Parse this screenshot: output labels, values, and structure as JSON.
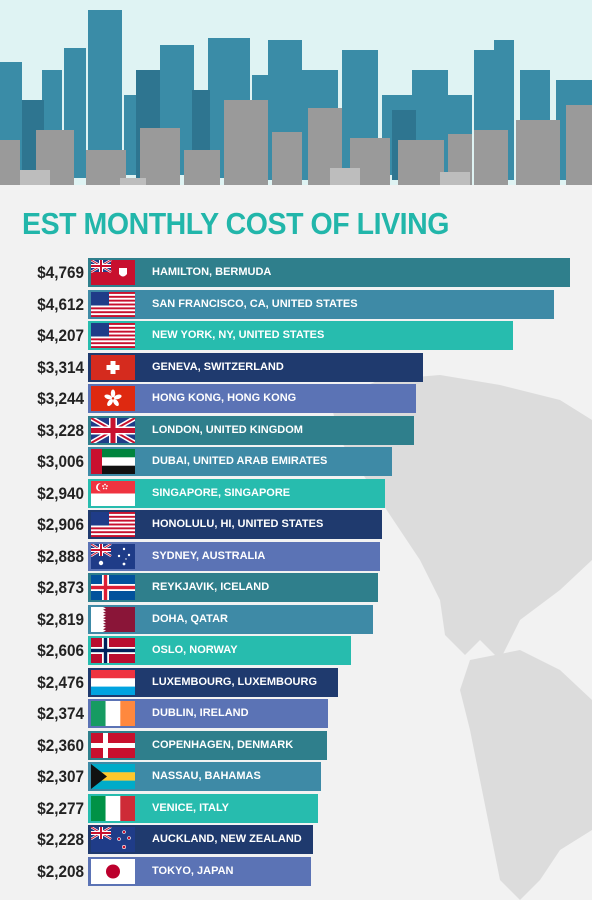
{
  "colors": {
    "teal_dark": "#2f7f8c",
    "steel": "#3e8aa6",
    "aqua": "#27bcae",
    "navy": "#1f3a6e",
    "periwinkle": "#5b73b5",
    "title": "#22b6aa",
    "skyline_blue": "#3a8ca7",
    "skyline_grey": "#9a9a9a"
  },
  "chart_data": {
    "type": "bar",
    "orientation": "horizontal",
    "title": "EST MONTHLY COST OF LIVING",
    "xlabel": "",
    "ylabel": "",
    "xlim": [
      0,
      4900
    ],
    "grid": false,
    "legend": "none",
    "categories": [
      "HAMILTON, BERMUDA",
      "SAN FRANCISCO, CA, UNITED STATES",
      "NEW YORK, NY, UNITED STATES",
      "GENEVA, SWITZERLAND",
      "HONG KONG, HONG KONG",
      "LONDON, UNITED KINGDOM",
      "DUBAI, UNITED ARAB EMIRATES",
      "SINGAPORE, SINGAPORE",
      "HONOLULU, HI, UNITED STATES",
      "SYDNEY, AUSTRALIA",
      "REYKJAVIK, ICELAND",
      "DOHA, QATAR",
      "OSLO, NORWAY",
      "LUXEMBOURG, LUXEMBOURG",
      "DUBLIN, IRELAND",
      "COPENHAGEN, DENMARK",
      "NASSAU, BAHAMAS",
      "VENICE, ITALY",
      "AUCKLAND, NEW ZEALAND",
      "TOKYO, JAPAN"
    ],
    "values": [
      4769,
      4612,
      4207,
      3314,
      3244,
      3228,
      3006,
      2940,
      2906,
      2888,
      2873,
      2819,
      2606,
      2476,
      2374,
      2360,
      2307,
      2277,
      2228,
      2208
    ],
    "value_labels": [
      "$4,769",
      "$4,612",
      "$4,207",
      "$3,314",
      "$3,244",
      "$3,228",
      "$3,006",
      "$2,940",
      "$2,906",
      "$2,888",
      "$2,873",
      "$2,819",
      "$2,606",
      "$2,476",
      "$2,374",
      "$2,360",
      "$2,307",
      "$2,277",
      "$2,228",
      "$2,208"
    ],
    "bar_colors": [
      "#2f7f8c",
      "#3e8aa6",
      "#27bcae",
      "#1f3a6e",
      "#5b73b5",
      "#2f7f8c",
      "#3e8aa6",
      "#27bcae",
      "#1f3a6e",
      "#5b73b5",
      "#2f7f8c",
      "#3e8aa6",
      "#27bcae",
      "#1f3a6e",
      "#5b73b5",
      "#2f7f8c",
      "#3e8aa6",
      "#27bcae",
      "#1f3a6e",
      "#5b73b5"
    ],
    "flags": [
      "bermuda-flag",
      "usa-flag",
      "usa-flag",
      "switzerland-flag",
      "hong-kong-flag",
      "uk-flag",
      "uae-flag",
      "singapore-flag",
      "usa-flag",
      "australia-flag",
      "iceland-flag",
      "qatar-flag",
      "norway-flag",
      "luxembourg-flag",
      "ireland-flag",
      "denmark-flag",
      "bahamas-flag",
      "italy-flag",
      "new-zealand-flag",
      "japan-flag"
    ]
  }
}
